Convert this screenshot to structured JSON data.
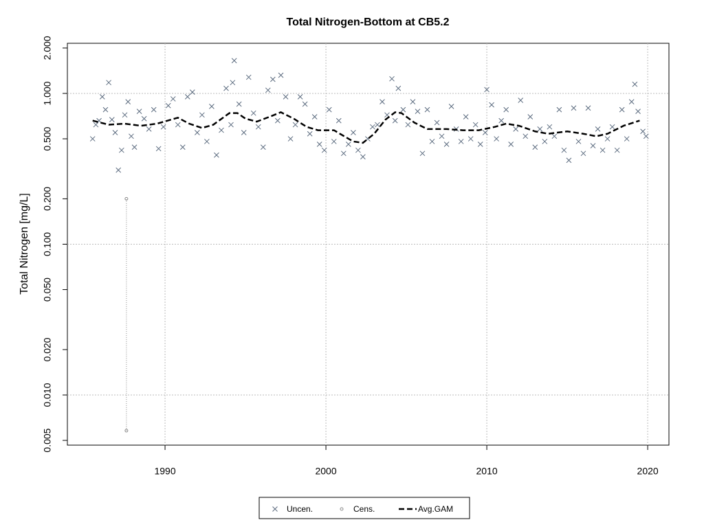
{
  "chart_data": {
    "type": "scatter",
    "title": "Total Nitrogen-Bottom at CB5.2",
    "y_label": "Total Nitrogen [mg/L]",
    "log_y": true,
    "grid": true,
    "xlim": [
      1983.93,
      2021.32
    ],
    "xticks": [
      1990,
      2000,
      2010,
      2020
    ],
    "ylim": [
      0.00465,
      2.15
    ],
    "yticks": [
      {
        "value": 0.005,
        "label": "0.005"
      },
      {
        "value": 0.01,
        "label": "0.010"
      },
      {
        "value": 0.02,
        "label": "0.020"
      },
      {
        "value": 0.05,
        "label": "0.050"
      },
      {
        "value": 0.1,
        "label": "0.100"
      },
      {
        "value": 0.2,
        "label": "0.200"
      },
      {
        "value": 0.5,
        "label": "0.500"
      },
      {
        "value": 1,
        "label": "1.000"
      },
      {
        "value": 2,
        "label": "2.000"
      }
    ],
    "legend": "bottom",
    "series": [
      {
        "name": "Uncen.",
        "marker": "x",
        "color": "#5a6a7e",
        "x": [
          1985.5,
          1985.7,
          1985.9,
          1986.1,
          1986.3,
          1986.5,
          1986.7,
          1986.9,
          1987.1,
          1987.3,
          1987.5,
          1987.7,
          1987.9,
          1988.1,
          1988.4,
          1988.7,
          1989.0,
          1989.3,
          1989.6,
          1989.9,
          1990.2,
          1990.5,
          1990.8,
          1991.1,
          1991.4,
          1991.7,
          1992.0,
          1992.3,
          1992.6,
          1992.9,
          1993.2,
          1993.5,
          1993.8,
          1994.1,
          1994.2,
          1994.3,
          1994.6,
          1994.9,
          1995.2,
          1995.5,
          1995.8,
          1996.1,
          1996.4,
          1996.7,
          1997.0,
          1997.2,
          1997.5,
          1997.8,
          1998.1,
          1998.4,
          1998.7,
          1999.0,
          1999.3,
          1999.6,
          1999.9,
          2000.2,
          2000.5,
          2000.8,
          2001.1,
          2001.4,
          2001.7,
          2002.0,
          2002.3,
          2002.6,
          2002.9,
          2003.2,
          2003.5,
          2003.8,
          2004.1,
          2004.3,
          2004.5,
          2004.8,
          2005.1,
          2005.4,
          2005.7,
          2006.0,
          2006.3,
          2006.6,
          2006.9,
          2007.2,
          2007.5,
          2007.8,
          2008.1,
          2008.4,
          2008.7,
          2009.0,
          2009.3,
          2009.6,
          2009.9,
          2010.0,
          2010.3,
          2010.6,
          2010.9,
          2011.2,
          2011.5,
          2011.8,
          2012.1,
          2012.4,
          2012.7,
          2013.0,
          2013.3,
          2013.6,
          2013.9,
          2014.2,
          2014.5,
          2014.8,
          2015.1,
          2015.4,
          2015.7,
          2016.0,
          2016.3,
          2016.6,
          2016.9,
          2017.2,
          2017.5,
          2017.8,
          2018.1,
          2018.4,
          2018.7,
          2019.0,
          2019.2,
          2019.4,
          2019.7,
          2019.9
        ],
        "values": [
          0.5,
          0.62,
          0.66,
          0.95,
          0.78,
          1.18,
          0.67,
          0.55,
          0.31,
          0.42,
          0.72,
          0.88,
          0.52,
          0.44,
          0.76,
          0.68,
          0.58,
          0.78,
          0.43,
          0.6,
          0.83,
          0.92,
          0.62,
          0.44,
          0.95,
          1.02,
          0.55,
          0.72,
          0.48,
          0.82,
          0.39,
          0.57,
          1.08,
          0.62,
          1.18,
          1.65,
          0.85,
          0.55,
          1.28,
          0.74,
          0.6,
          0.44,
          1.05,
          1.24,
          0.66,
          1.32,
          0.95,
          0.5,
          0.62,
          0.95,
          0.85,
          0.54,
          0.7,
          0.46,
          0.42,
          0.78,
          0.48,
          0.66,
          0.4,
          0.46,
          0.55,
          0.42,
          0.38,
          0.5,
          0.6,
          0.62,
          0.88,
          0.72,
          1.25,
          0.66,
          1.08,
          0.78,
          0.62,
          0.88,
          0.76,
          0.4,
          0.78,
          0.48,
          0.64,
          0.52,
          0.46,
          0.82,
          0.58,
          0.48,
          0.7,
          0.5,
          0.62,
          0.46,
          0.55,
          1.06,
          0.84,
          0.5,
          0.66,
          0.78,
          0.46,
          0.58,
          0.9,
          0.52,
          0.7,
          0.44,
          0.58,
          0.48,
          0.6,
          0.52,
          0.78,
          0.42,
          0.36,
          0.8,
          0.48,
          0.4,
          0.8,
          0.45,
          0.58,
          0.42,
          0.5,
          0.6,
          0.42,
          0.78,
          0.5,
          0.88,
          1.15,
          0.76,
          0.56,
          0.52
        ]
      },
      {
        "name": "Cens.",
        "marker": "o",
        "color": "#8a8a8a",
        "x": [
          1987.6
        ],
        "low": [
          0.0058
        ],
        "high": [
          0.2
        ]
      },
      {
        "name": "Avg.GAM",
        "marker": "dashed",
        "color": "#000000",
        "x": [
          1985.5,
          1986.5,
          1987.5,
          1988.5,
          1989.5,
          1990.8,
          1991.5,
          1992.3,
          1993.0,
          1994.0,
          1994.5,
          1995.0,
          1995.7,
          1996.5,
          1997.2,
          1998.0,
          1998.8,
          1999.5,
          2000.5,
          2001.0,
          2001.7,
          2002.3,
          2003.0,
          2003.7,
          2004.3,
          2004.7,
          2005.5,
          2006.3,
          2007.5,
          2008.5,
          2009.5,
          2010.5,
          2011.2,
          2012.0,
          2013.0,
          2013.8,
          2015.0,
          2016.0,
          2016.8,
          2017.5,
          2018.5,
          2019.5
        ],
        "values": [
          0.66,
          0.62,
          0.63,
          0.61,
          0.63,
          0.69,
          0.63,
          0.59,
          0.62,
          0.74,
          0.74,
          0.68,
          0.65,
          0.7,
          0.75,
          0.68,
          0.6,
          0.57,
          0.57,
          0.53,
          0.48,
          0.47,
          0.54,
          0.67,
          0.75,
          0.74,
          0.64,
          0.58,
          0.58,
          0.57,
          0.57,
          0.6,
          0.63,
          0.61,
          0.56,
          0.54,
          0.56,
          0.54,
          0.52,
          0.54,
          0.61,
          0.66
        ]
      }
    ]
  }
}
